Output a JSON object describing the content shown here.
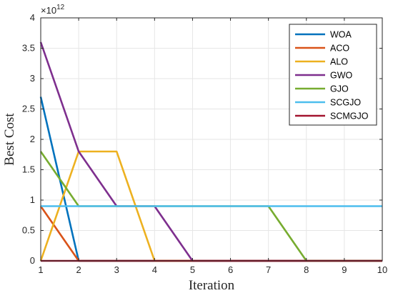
{
  "chart_data": {
    "type": "line",
    "title": "",
    "xlabel": "Iteration",
    "ylabel": "Best Cost",
    "exponent_label": "×10",
    "exponent_power": "12",
    "xlim": [
      1,
      10
    ],
    "ylim": [
      0,
      4
    ],
    "x_ticks": [
      1,
      2,
      3,
      4,
      5,
      6,
      7,
      8,
      9,
      10
    ],
    "y_ticks": [
      0,
      0.5,
      1,
      1.5,
      2,
      2.5,
      3,
      3.5,
      4
    ],
    "y_tick_labels": [
      "0",
      "0.5",
      "1",
      "1.5",
      "2",
      "2.5",
      "3",
      "3.5",
      "4"
    ],
    "grid": true,
    "legend_position": "top-right",
    "x": [
      1,
      2,
      3,
      4,
      5,
      6,
      7,
      8,
      9,
      10
    ],
    "series": [
      {
        "name": "WOA",
        "color": "#0072BD",
        "values": [
          2.7,
          0,
          0,
          0,
          0,
          0,
          0,
          0,
          0,
          0
        ]
      },
      {
        "name": "ACO",
        "color": "#D95319",
        "values": [
          0.9,
          0,
          0,
          0,
          0,
          0,
          0,
          0,
          0,
          0
        ]
      },
      {
        "name": "ALO",
        "color": "#EDB120",
        "values": [
          0,
          1.8,
          1.8,
          0,
          0,
          0,
          0,
          0,
          0,
          0
        ]
      },
      {
        "name": "GWO",
        "color": "#7E2F8E",
        "values": [
          3.6,
          1.8,
          0.9,
          0.9,
          0,
          0,
          0,
          0,
          0,
          0
        ]
      },
      {
        "name": "GJO",
        "color": "#77AC30",
        "values": [
          1.8,
          0.9,
          0.9,
          0.9,
          0.9,
          0.9,
          0.9,
          0,
          0,
          0
        ]
      },
      {
        "name": "SCGJO",
        "color": "#4DBEEE",
        "values": [
          0.9,
          0.9,
          0.9,
          0.9,
          0.9,
          0.9,
          0.9,
          0.9,
          0.9,
          0.9
        ]
      },
      {
        "name": "SCMGJO",
        "color": "#A2142F",
        "values": [
          0,
          0,
          0,
          0,
          0,
          0,
          0,
          0,
          0,
          0
        ]
      }
    ]
  }
}
